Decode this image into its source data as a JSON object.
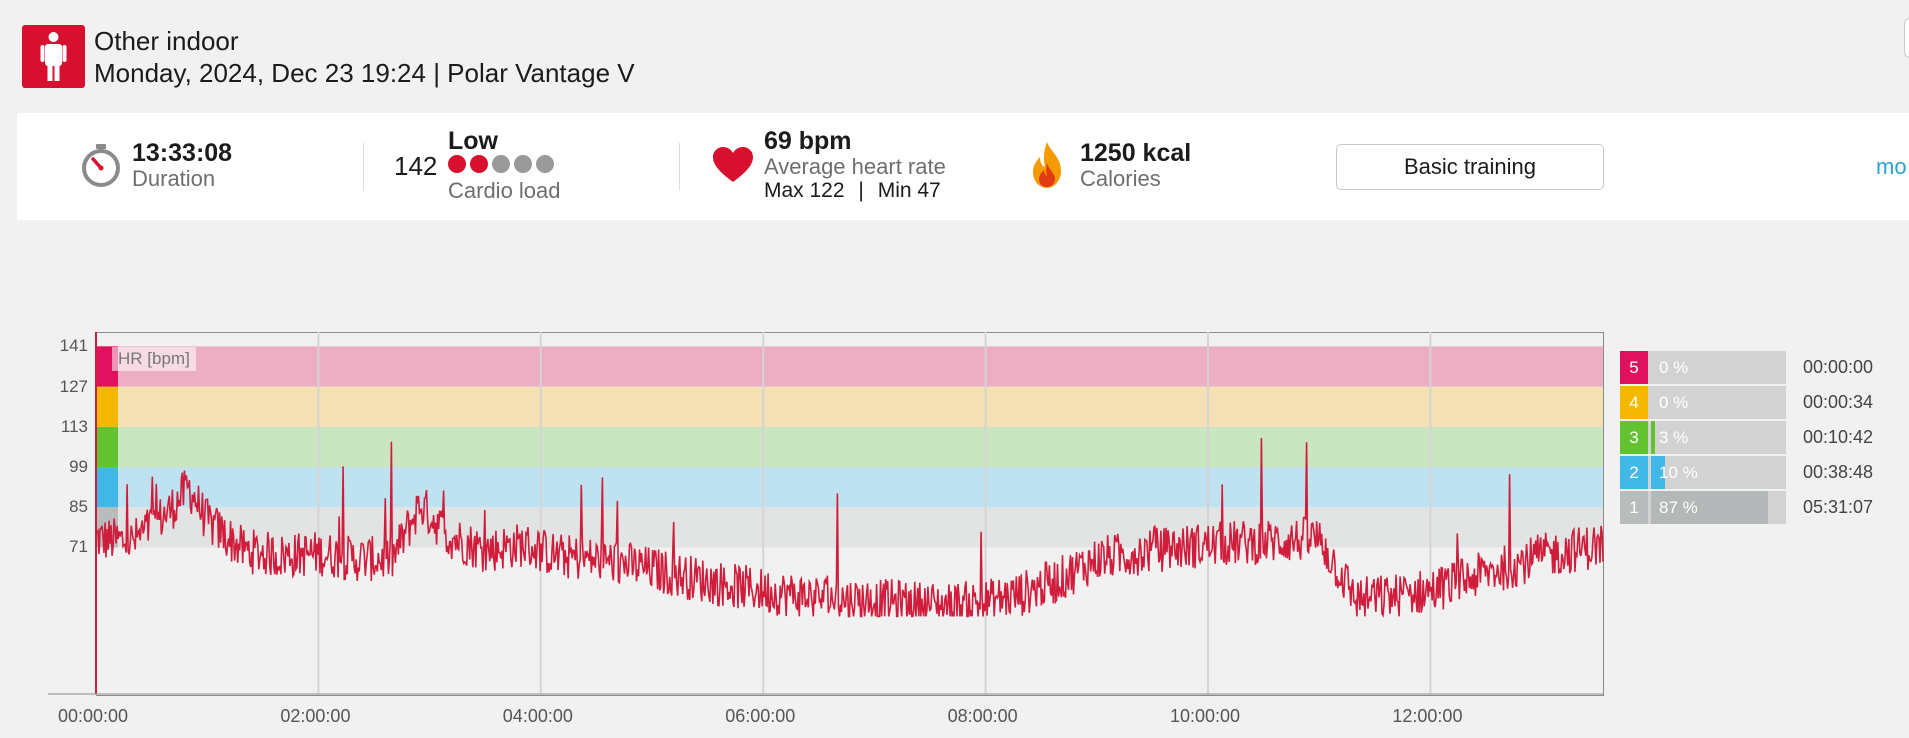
{
  "header": {
    "title": "Other indoor",
    "subtitle": "Monday, 2024, Dec 23 19:24 | Polar Vantage V"
  },
  "summary": {
    "duration_value": "13:33:08",
    "duration_label": "Duration",
    "cardio_value": "142",
    "cardio_level": "Low",
    "cardio_label": "Cardio load",
    "cardio_dots_filled": 2,
    "cardio_dots_total": 5,
    "hr_avg": "69 bpm",
    "hr_label": "Average heart rate",
    "hr_max": "Max 122",
    "hr_sep": "|",
    "hr_min": "Min 47",
    "calories_value": "1250 kcal",
    "calories_label": "Calories",
    "benefit_button": "Basic training",
    "more_link": "mo"
  },
  "colors": {
    "brand_red": "#d8102f",
    "hr_line": "#d01d3c",
    "link_blue": "#2aa3d6",
    "zone5": "#e0115f",
    "zone4": "#f5b800",
    "zone3": "#62c230",
    "zone2": "#42b8e8",
    "zone1": "#b9bcbc"
  },
  "chart_data": {
    "type": "line",
    "series_label": "HR [bpm]",
    "y_ticks": [
      "141",
      "127",
      "113",
      "99",
      "85",
      "71"
    ],
    "y_zone_bounds": [
      71,
      85,
      99,
      113,
      127,
      141
    ],
    "x_ticks": [
      "00:00:00",
      "02:00:00",
      "04:00:00",
      "06:00:00",
      "08:00:00",
      "10:00:00",
      "12:00:00"
    ],
    "x_range_seconds": [
      0,
      48788
    ],
    "ylim": [
      20,
      146
    ],
    "grid": true,
    "series": [
      {
        "name": "HR [bpm]",
        "x": [
          "00:00:00",
          "00:20:00",
          "00:40:00",
          "00:50:00",
          "01:00:00",
          "01:20:00",
          "01:40:00",
          "02:00:00",
          "02:20:00",
          "02:40:00",
          "02:55:00",
          "03:10:00",
          "03:30:00",
          "03:50:00",
          "04:10:00",
          "04:40:00",
          "05:10:00",
          "05:40:00",
          "06:10:00",
          "06:40:00",
          "07:10:00",
          "07:40:00",
          "08:00:00",
          "08:20:00",
          "08:40:00",
          "09:00:00",
          "09:30:00",
          "10:00:00",
          "10:30:00",
          "11:00:00",
          "11:20:00",
          "11:40:00",
          "12:00:00",
          "12:30:00",
          "13:00:00",
          "13:33:08"
        ],
        "values": [
          74,
          73,
          84,
          92,
          80,
          70,
          68,
          69,
          67,
          67,
          86,
          75,
          70,
          72,
          68,
          66,
          62,
          58,
          55,
          53,
          52,
          51,
          52,
          55,
          60,
          67,
          70,
          72,
          73,
          74,
          53,
          54,
          56,
          62,
          68,
          72
        ]
      }
    ]
  },
  "zones": [
    {
      "num": "5",
      "pct": "0 %",
      "fraction": 0.0,
      "time": "00:00:00"
    },
    {
      "num": "4",
      "pct": "0 %",
      "fraction": 0.0,
      "time": "00:00:34"
    },
    {
      "num": "3",
      "pct": "3 %",
      "fraction": 0.03,
      "time": "00:10:42"
    },
    {
      "num": "2",
      "pct": "10 %",
      "fraction": 0.1,
      "time": "00:38:48"
    },
    {
      "num": "1",
      "pct": "87 %",
      "fraction": 0.87,
      "time": "05:31:07"
    }
  ]
}
